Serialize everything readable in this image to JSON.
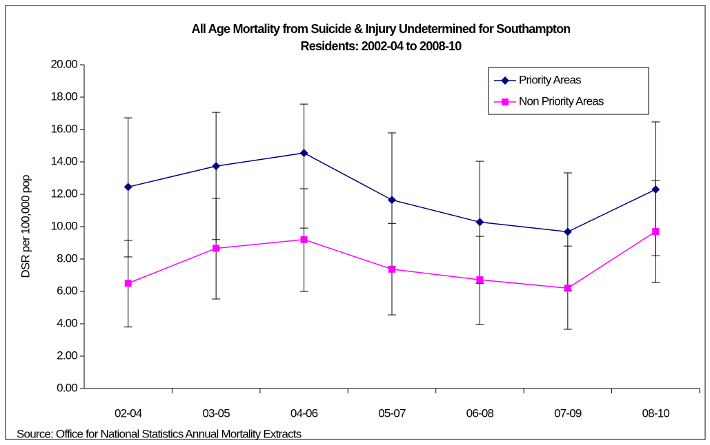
{
  "chart_data": {
    "type": "line",
    "title": [
      "All Age Mortality from Suicide & Injury Undetermined for Southampton",
      "Residents: 2002-04 to 2008-10"
    ],
    "y_label": "DSR per 100,000 pop",
    "source": "Source: Office for National Statistics Annual Mortality Extracts",
    "categories": [
      "02-04",
      "03-05",
      "04-06",
      "05-07",
      "06-08",
      "07-09",
      "08-10"
    ],
    "series": [
      {
        "name": "Priority Areas",
        "color": "#000080",
        "marker": "diamond",
        "values": [
          12.45,
          13.74,
          14.55,
          11.65,
          10.28,
          9.68,
          12.3
        ],
        "lower": [
          8.13,
          9.2,
          9.91,
          7.5,
          6.5,
          6.05,
          8.2
        ],
        "upper": [
          16.72,
          17.06,
          17.57,
          15.79,
          14.04,
          13.32,
          16.47
        ]
      },
      {
        "name": "Non Priority Areas",
        "color": "#ff00ff",
        "marker": "square",
        "values": [
          6.5,
          8.66,
          9.2,
          7.37,
          6.72,
          6.2,
          9.7
        ],
        "lower": [
          3.8,
          5.53,
          6.0,
          4.55,
          3.95,
          3.66,
          6.55
        ],
        "upper": [
          9.15,
          11.75,
          12.34,
          10.2,
          9.4,
          8.8,
          12.85
        ]
      }
    ],
    "ylim": [
      0,
      20
    ],
    "yticks": [
      {
        "value": 0,
        "label": "0.00"
      },
      {
        "value": 2,
        "label": "2.00"
      },
      {
        "value": 4,
        "label": "4.00"
      },
      {
        "value": 6,
        "label": "6.00"
      },
      {
        "value": 8,
        "label": "8.00"
      },
      {
        "value": 10,
        "label": "10.00"
      },
      {
        "value": 12,
        "label": "12.00"
      },
      {
        "value": 14,
        "label": "14.00"
      },
      {
        "value": 16,
        "label": "16.00"
      },
      {
        "value": 18,
        "label": "18.00"
      },
      {
        "value": 20,
        "label": "20.00"
      }
    ],
    "grid": false,
    "legend": "upper right"
  }
}
